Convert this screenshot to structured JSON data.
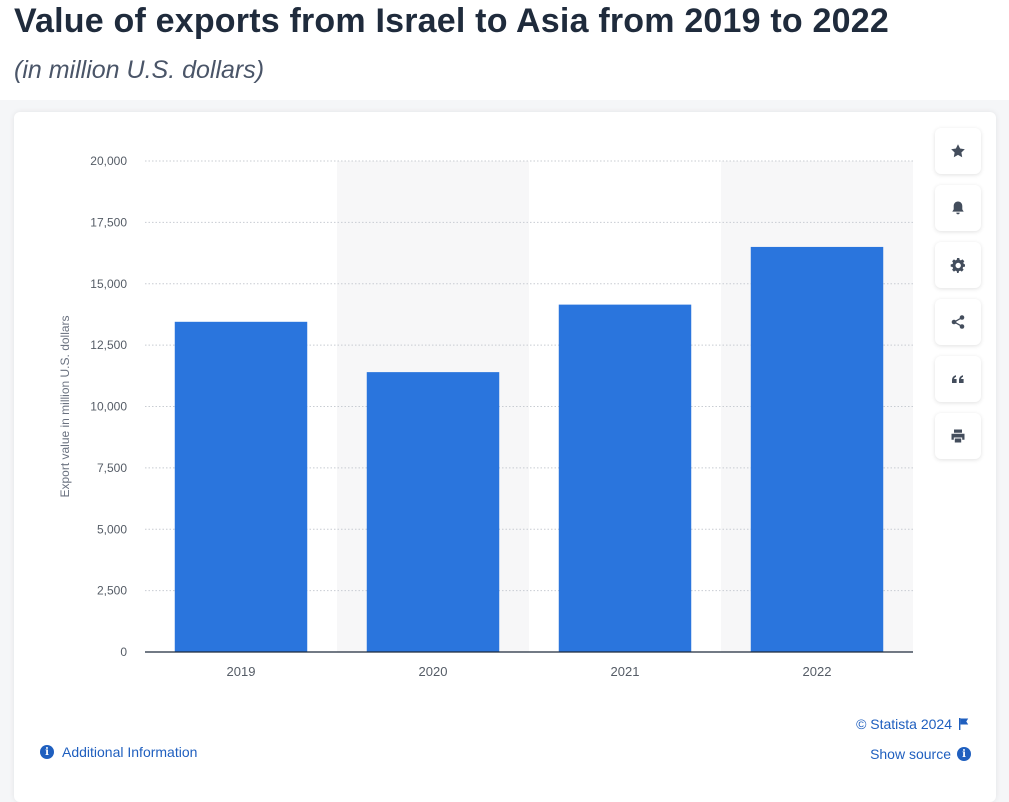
{
  "header": {
    "title": "Value of exports from Israel to Asia from 2019 to 2022",
    "subtitle": "(in million U.S. dollars)"
  },
  "chart_data": {
    "type": "bar",
    "categories": [
      "2019",
      "2020",
      "2021",
      "2022"
    ],
    "values": [
      13450,
      11400,
      14150,
      16500
    ],
    "ylabel": "Export value in million U.S. dollars",
    "xlabel": "",
    "ylim": [
      0,
      20000
    ],
    "yticks": [
      0,
      2500,
      5000,
      7500,
      10000,
      12500,
      15000,
      17500,
      20000
    ],
    "ytick_labels": [
      "0",
      "2,500",
      "5,000",
      "7,500",
      "10,000",
      "12,500",
      "15,000",
      "17,500",
      "20,000"
    ],
    "grid": true,
    "bar_color": "#2a75dd"
  },
  "toolbar": {
    "icons": [
      "star-icon",
      "bell-icon",
      "gear-icon",
      "share-icon",
      "quote-icon",
      "print-icon"
    ]
  },
  "footer": {
    "credit": "© Statista 2024",
    "show_source": "Show source",
    "additional_info": "Additional Information"
  },
  "colors": {
    "accent": "#1f5fbf",
    "title": "#1f2b3c",
    "band": "#f7f7f8"
  }
}
